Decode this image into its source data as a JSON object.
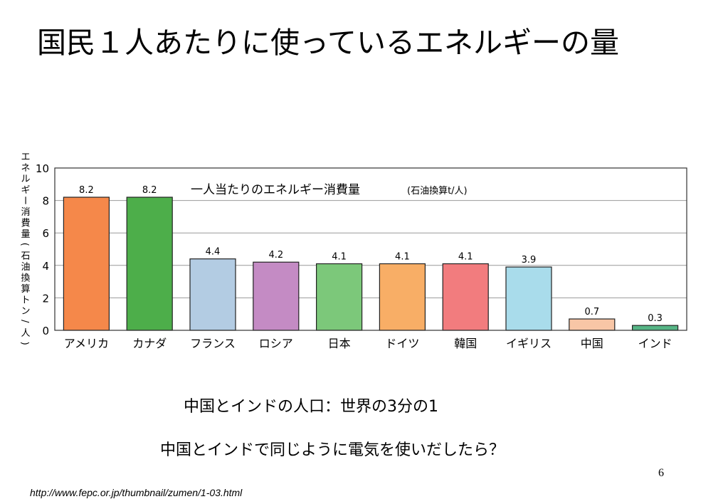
{
  "slide": {
    "title": "国民１人あたりに使っているエネルギーの量",
    "note1": "中国とインドの人口：世界の3分の1",
    "note2": "中国とインドで同じように電気を使いだしたら？",
    "page_number": "6",
    "source": "http://www.fepc.or.jp/thumbnail/zumen/1-03.html"
  },
  "chart_data": {
    "type": "bar",
    "title": "一人当たりのエネルギー消費量",
    "title_unit": "(石油換算t/人)",
    "ylabel": "エネルギー消費量 (石油換算トン/人)",
    "xlabel": "",
    "ylim": [
      0,
      10
    ],
    "yticks": [
      0,
      2,
      4,
      6,
      8,
      10
    ],
    "grid": true,
    "legend": "none",
    "categories": [
      "アメリカ",
      "カナダ",
      "フランス",
      "ロシア",
      "日本",
      "ドイツ",
      "韓国",
      "イギリス",
      "中国",
      "インド"
    ],
    "values": [
      8.2,
      8.2,
      4.4,
      4.2,
      4.1,
      4.1,
      4.1,
      3.9,
      0.7,
      0.3
    ],
    "value_labels": [
      "8.2",
      "8.2",
      "4.4",
      "4.2",
      "4.1",
      "4.1",
      "4.1",
      "3.9",
      "0.7",
      "0.3"
    ],
    "colors": [
      "#F5884A",
      "#4DAE4A",
      "#B3CCE3",
      "#C48BC4",
      "#7CC87A",
      "#F8AE66",
      "#F27C7E",
      "#A9DCEB",
      "#F8C6A6",
      "#56B585"
    ]
  }
}
